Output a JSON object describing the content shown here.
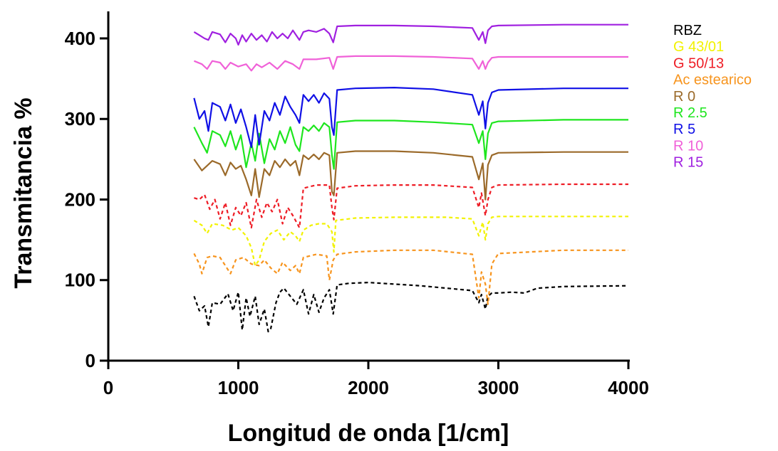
{
  "chart_data": {
    "type": "line",
    "title": "",
    "xlabel": "Longitud de onda [1/cm]",
    "ylabel": "Transmitancia %",
    "xlim": [
      0,
      4000
    ],
    "ylim": [
      0,
      430
    ],
    "x_ticks": [
      0,
      1000,
      2000,
      3000,
      4000
    ],
    "x_tick_labels": [
      "0",
      "1000",
      "2000",
      "3000",
      "4000"
    ],
    "y_ticks": [
      0,
      100,
      200,
      300,
      400
    ],
    "y_tick_labels": [
      "0",
      "100",
      "200",
      "300",
      "400"
    ],
    "grid": false,
    "legend_position": "right",
    "series": [
      {
        "name": "RBZ",
        "color": "#000000",
        "dashed": true,
        "x": [
          660,
          700,
          740,
          770,
          800,
          860,
          920,
          960,
          1000,
          1030,
          1060,
          1090,
          1130,
          1160,
          1200,
          1230,
          1250,
          1290,
          1320,
          1350,
          1400,
          1450,
          1500,
          1540,
          1580,
          1620,
          1660,
          1700,
          1730,
          1760,
          1850,
          2000,
          2200,
          2400,
          2600,
          2800,
          2850,
          2870,
          2900,
          2920,
          2950,
          3000,
          3100,
          3200,
          3300,
          3500,
          4000
        ],
        "y": [
          80,
          62,
          68,
          42,
          72,
          70,
          83,
          62,
          85,
          38,
          78,
          55,
          80,
          45,
          64,
          36,
          40,
          72,
          85,
          90,
          80,
          70,
          88,
          58,
          82,
          60,
          78,
          88,
          58,
          94,
          96,
          97,
          95,
          93,
          90,
          87,
          72,
          82,
          64,
          80,
          84,
          84,
          85,
          84,
          90,
          92,
          93
        ]
      },
      {
        "name": "G 43/01",
        "color": "#f2f200",
        "dashed": true,
        "x": [
          660,
          720,
          760,
          800,
          880,
          950,
          1000,
          1060,
          1100,
          1130,
          1160,
          1200,
          1250,
          1300,
          1350,
          1400,
          1440,
          1470,
          1500,
          1560,
          1620,
          1680,
          1720,
          1735,
          1750,
          1900,
          2200,
          2600,
          2800,
          2850,
          2880,
          2900,
          2920,
          2950,
          3000,
          3500,
          4000
        ],
        "y": [
          174,
          168,
          158,
          170,
          168,
          162,
          165,
          155,
          140,
          118,
          125,
          148,
          158,
          162,
          150,
          160,
          155,
          148,
          162,
          168,
          170,
          170,
          160,
          135,
          174,
          177,
          178,
          178,
          176,
          155,
          172,
          150,
          170,
          178,
          179,
          179,
          179
        ]
      },
      {
        "name": "Ac estearico",
        "color": "#f7941d",
        "dashed": true,
        "x": [
          660,
          700,
          720,
          760,
          800,
          860,
          900,
          940,
          980,
          1040,
          1100,
          1160,
          1200,
          1250,
          1300,
          1340,
          1400,
          1440,
          1470,
          1500,
          1600,
          1680,
          1700,
          1730,
          1760,
          1900,
          2200,
          2500,
          2800,
          2850,
          2870,
          2900,
          2920,
          2950,
          3000,
          3500,
          4000
        ],
        "y": [
          133,
          120,
          108,
          128,
          130,
          128,
          118,
          108,
          125,
          128,
          120,
          118,
          125,
          115,
          108,
          122,
          112,
          118,
          108,
          128,
          132,
          130,
          100,
          125,
          132,
          135,
          137,
          137,
          132,
          78,
          110,
          95,
          70,
          120,
          133,
          137,
          137
        ]
      },
      {
        "name": "G 50/13",
        "color": "#ee1c25",
        "dashed": true,
        "x": [
          660,
          700,
          740,
          780,
          820,
          860,
          900,
          940,
          980,
          1020,
          1060,
          1100,
          1140,
          1180,
          1220,
          1260,
          1300,
          1340,
          1380,
          1420,
          1470,
          1500,
          1600,
          1700,
          1720,
          1735,
          1760,
          1900,
          2200,
          2500,
          2800,
          2850,
          2870,
          2900,
          2920,
          2950,
          3000,
          3500,
          4000
        ],
        "y": [
          202,
          200,
          206,
          188,
          200,
          176,
          196,
          168,
          190,
          180,
          196,
          165,
          200,
          178,
          196,
          185,
          200,
          170,
          190,
          180,
          165,
          214,
          218,
          218,
          190,
          175,
          214,
          217,
          218,
          218,
          215,
          190,
          208,
          180,
          200,
          215,
          218,
          219,
          219
        ]
      },
      {
        "name": "R 0",
        "color": "#9b6a2a",
        "dashed": false,
        "x": [
          660,
          720,
          760,
          800,
          860,
          900,
          940,
          980,
          1020,
          1060,
          1100,
          1130,
          1160,
          1200,
          1240,
          1280,
          1320,
          1360,
          1400,
          1440,
          1470,
          1500,
          1540,
          1580,
          1620,
          1660,
          1700,
          1720,
          1735,
          1760,
          1900,
          2200,
          2500,
          2800,
          2850,
          2880,
          2900,
          2920,
          2950,
          3000,
          3500,
          4000
        ],
        "y": [
          250,
          236,
          242,
          248,
          244,
          230,
          246,
          238,
          242,
          225,
          205,
          238,
          203,
          238,
          230,
          248,
          240,
          250,
          242,
          248,
          230,
          255,
          250,
          256,
          250,
          258,
          255,
          210,
          205,
          258,
          260,
          260,
          258,
          253,
          225,
          245,
          200,
          243,
          255,
          258,
          259,
          259
        ]
      },
      {
        "name": "R 2.5",
        "color": "#1ee61e",
        "dashed": false,
        "x": [
          660,
          720,
          760,
          800,
          860,
          900,
          940,
          980,
          1020,
          1060,
          1100,
          1130,
          1160,
          1200,
          1240,
          1280,
          1320,
          1360,
          1400,
          1440,
          1470,
          1500,
          1540,
          1580,
          1620,
          1660,
          1700,
          1720,
          1735,
          1760,
          1900,
          2200,
          2500,
          2800,
          2850,
          2880,
          2900,
          2920,
          2950,
          3000,
          3500,
          4000
        ],
        "y": [
          290,
          270,
          258,
          285,
          280,
          266,
          285,
          262,
          280,
          240,
          270,
          248,
          282,
          245,
          275,
          262,
          285,
          270,
          290,
          268,
          260,
          290,
          285,
          292,
          285,
          295,
          290,
          255,
          238,
          296,
          298,
          298,
          296,
          293,
          270,
          285,
          250,
          282,
          295,
          297,
          299,
          299
        ]
      },
      {
        "name": "R 5",
        "color": "#1010e6",
        "dashed": false,
        "x": [
          660,
          700,
          740,
          770,
          800,
          860,
          900,
          940,
          980,
          1020,
          1060,
          1100,
          1130,
          1160,
          1200,
          1240,
          1280,
          1320,
          1360,
          1400,
          1440,
          1470,
          1500,
          1540,
          1580,
          1620,
          1660,
          1700,
          1720,
          1735,
          1760,
          1900,
          2200,
          2500,
          2800,
          2850,
          2880,
          2900,
          2920,
          2950,
          3000,
          3500,
          4000
        ],
        "y": [
          326,
          300,
          310,
          285,
          320,
          315,
          298,
          318,
          295,
          312,
          290,
          265,
          305,
          268,
          310,
          298,
          320,
          305,
          328,
          315,
          305,
          295,
          330,
          322,
          330,
          320,
          332,
          325,
          290,
          280,
          336,
          338,
          339,
          337,
          330,
          305,
          322,
          288,
          320,
          333,
          336,
          338,
          338
        ]
      },
      {
        "name": "R 10",
        "color": "#f061d8",
        "dashed": false,
        "x": [
          660,
          720,
          760,
          800,
          860,
          900,
          940,
          1000,
          1060,
          1100,
          1140,
          1180,
          1240,
          1300,
          1360,
          1420,
          1470,
          1500,
          1600,
          1700,
          1730,
          1760,
          1900,
          2200,
          2500,
          2800,
          2850,
          2880,
          2900,
          2920,
          2950,
          3000,
          3500,
          4000
        ],
        "y": [
          372,
          368,
          362,
          372,
          370,
          362,
          370,
          365,
          368,
          360,
          368,
          364,
          370,
          362,
          372,
          368,
          362,
          374,
          374,
          376,
          362,
          377,
          378,
          378,
          377,
          375,
          362,
          372,
          362,
          370,
          376,
          377,
          377,
          377
        ]
      },
      {
        "name": "R 15",
        "color": "#a020e0",
        "dashed": false,
        "x": [
          660,
          700,
          740,
          770,
          800,
          860,
          900,
          940,
          980,
          1000,
          1030,
          1060,
          1100,
          1140,
          1180,
          1220,
          1260,
          1300,
          1340,
          1380,
          1420,
          1470,
          1500,
          1540,
          1600,
          1660,
          1700,
          1730,
          1760,
          1900,
          2200,
          2500,
          2800,
          2850,
          2880,
          2900,
          2920,
          2950,
          3000,
          3500,
          4000
        ],
        "y": [
          408,
          404,
          400,
          398,
          408,
          405,
          395,
          406,
          400,
          392,
          404,
          396,
          406,
          398,
          404,
          396,
          408,
          400,
          406,
          400,
          410,
          398,
          408,
          410,
          408,
          412,
          406,
          395,
          415,
          416,
          416,
          415,
          413,
          398,
          408,
          394,
          410,
          415,
          416,
          417,
          417
        ]
      }
    ],
    "legend": [
      {
        "label": "RBZ",
        "color": "#000000"
      },
      {
        "label": "G 43/01",
        "color": "#f2f200"
      },
      {
        "label": "G 50/13",
        "color": "#ee1c25"
      },
      {
        "label": "Ac estearico",
        "color": "#f7941d"
      },
      {
        "label": "R 0",
        "color": "#9b6a2a"
      },
      {
        "label": "R 2.5",
        "color": "#1ee61e"
      },
      {
        "label": "R 5",
        "color": "#1010e6"
      },
      {
        "label": "R 10",
        "color": "#f061d8"
      },
      {
        "label": "R 15",
        "color": "#a020e0"
      }
    ]
  }
}
